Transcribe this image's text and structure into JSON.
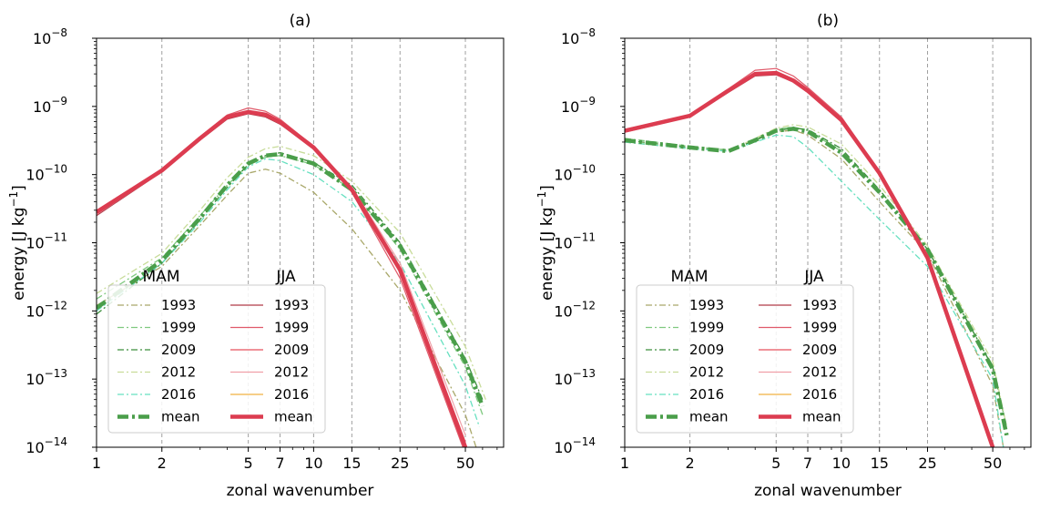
{
  "chart_data": [
    {
      "type": "line",
      "title": "(a)",
      "xlabel": "zonal wavenumber",
      "ylabel_main": "energy [J kg",
      "ylabel_sup": "−1",
      "ylabel_end": "]",
      "x_scale": "log",
      "y_scale": "log",
      "xlim": [
        1,
        75
      ],
      "ylim": [
        1e-14,
        1e-08
      ],
      "xticks": [
        1,
        2,
        5,
        7,
        10,
        15,
        25,
        50
      ],
      "xtick_labels": [
        "1",
        "2",
        "5",
        "7",
        "10",
        "15",
        "25",
        "50"
      ],
      "ytick_labels": [
        {
          "base": "10",
          "exp": "−8"
        },
        {
          "base": "10",
          "exp": "−9"
        },
        {
          "base": "10",
          "exp": "−10"
        },
        {
          "base": "10",
          "exp": "−11"
        },
        {
          "base": "10",
          "exp": "−12"
        },
        {
          "base": "10",
          "exp": "−13"
        },
        {
          "base": "10",
          "exp": "−14"
        }
      ],
      "grid": "vertical dashed at x ticks",
      "legend_position": "lower-left",
      "legend_groups": [
        "MAM",
        "JJA"
      ],
      "series": [
        {
          "name": "1993",
          "group": "MAM",
          "color": "#a9a86a",
          "style": "dashdot",
          "x": [
            1,
            2,
            3,
            4,
            5,
            6,
            7,
            10,
            15,
            25,
            50,
            56
          ],
          "y": [
            1.2e-12,
            4.5e-12,
            1.8e-11,
            5e-11,
            1.05e-10,
            1.2e-10,
            1.05e-10,
            5.5e-11,
            1.6e-11,
            2e-12,
            3e-14,
            1e-14
          ]
        },
        {
          "name": "1999",
          "group": "MAM",
          "color": "#7fc97f",
          "style": "dashdot",
          "x": [
            1,
            2,
            3,
            4,
            5,
            6,
            7,
            10,
            15,
            25,
            50,
            60
          ],
          "y": [
            1.5e-12,
            6e-12,
            2.5e-11,
            7e-11,
            1.4e-10,
            1.8e-10,
            1.9e-10,
            1.4e-10,
            6e-11,
            8e-12,
            1.5e-13,
            3e-14
          ]
        },
        {
          "name": "2009",
          "group": "MAM",
          "color": "#3c8f3c",
          "style": "dashdot",
          "x": [
            1,
            2,
            3,
            4,
            5,
            6,
            7,
            10,
            15,
            25,
            50,
            60
          ],
          "y": [
            9e-13,
            5e-12,
            2.2e-11,
            6.5e-11,
            1.4e-10,
            1.9e-10,
            2.1e-10,
            1.5e-10,
            7e-11,
            1e-11,
            2e-13,
            5e-14
          ]
        },
        {
          "name": "2012",
          "group": "MAM",
          "color": "#c8dc9a",
          "style": "dashdot",
          "x": [
            1,
            2,
            3,
            4,
            5,
            6,
            7,
            10,
            15,
            25,
            50,
            62
          ],
          "y": [
            1.8e-12,
            7e-12,
            3e-11,
            9e-11,
            1.8e-10,
            2.4e-10,
            2.6e-10,
            1.9e-10,
            8e-11,
            1.4e-11,
            3e-13,
            5e-14
          ]
        },
        {
          "name": "2016",
          "group": "MAM",
          "color": "#66e0c0",
          "style": "dashdot",
          "x": [
            1,
            2,
            3,
            4,
            5,
            6,
            7,
            10,
            15,
            25,
            50,
            58
          ],
          "y": [
            1e-12,
            5e-12,
            2e-11,
            6e-11,
            1.3e-10,
            1.7e-10,
            1.6e-10,
            1e-10,
            4e-11,
            5e-12,
            8e-14,
            2e-14
          ]
        },
        {
          "name": "mean",
          "group": "MAM",
          "color": "#4a9e4a",
          "style": "dashdot-thick",
          "x": [
            1,
            2,
            3,
            4,
            5,
            6,
            7,
            10,
            15,
            25,
            50,
            60
          ],
          "y": [
            1.1e-12,
            5.5e-12,
            2.3e-11,
            7e-11,
            1.45e-10,
            1.9e-10,
            2e-10,
            1.45e-10,
            6e-11,
            9e-12,
            1.8e-13,
            4e-14
          ]
        },
        {
          "name": "1993",
          "group": "JJA",
          "color": "#b03a48",
          "style": "solid",
          "x": [
            1,
            2,
            3,
            4,
            5,
            6,
            7,
            10,
            15,
            25,
            50
          ],
          "y": [
            2.5e-11,
            1.1e-10,
            3.2e-10,
            6.5e-10,
            7.8e-10,
            7e-10,
            5.5e-10,
            2.4e-10,
            6e-11,
            4e-12,
            1e-14
          ]
        },
        {
          "name": "1999",
          "group": "JJA",
          "color": "#e05a6a",
          "style": "solid",
          "x": [
            1,
            2,
            3,
            4,
            5,
            6,
            7,
            10,
            15,
            25,
            50
          ],
          "y": [
            2.8e-11,
            1.2e-10,
            3.6e-10,
            7.5e-10,
            9.5e-10,
            8.5e-10,
            6.5e-10,
            2.6e-10,
            5.5e-11,
            3e-12,
            8e-15
          ]
        },
        {
          "name": "2009",
          "group": "JJA",
          "color": "#e8505c",
          "style": "solid",
          "x": [
            1,
            2,
            3,
            4,
            5,
            6,
            7,
            10,
            15,
            25,
            50
          ],
          "y": [
            3e-11,
            1.2e-10,
            3.5e-10,
            7e-10,
            8.5e-10,
            7.8e-10,
            6e-10,
            2.6e-10,
            6e-11,
            4e-12,
            1.2e-14
          ]
        },
        {
          "name": "2012",
          "group": "JJA",
          "color": "#f0a0a8",
          "style": "solid",
          "x": [
            1,
            2,
            3,
            4,
            5,
            6,
            7,
            10,
            15,
            25,
            50
          ],
          "y": [
            2.6e-11,
            1.1e-10,
            3.3e-10,
            6.8e-10,
            8e-10,
            7.2e-10,
            5.6e-10,
            2.5e-10,
            6.5e-11,
            5e-12,
            1.5e-14
          ]
        },
        {
          "name": "2016",
          "group": "JJA",
          "color": "#f0b040",
          "style": "solid",
          "x": [
            1,
            2,
            3,
            4,
            5,
            6,
            7,
            10,
            15,
            25,
            50
          ],
          "y": [
            2.9e-11,
            1.2e-10,
            3.4e-10,
            7e-10,
            8.2e-10,
            7.5e-10,
            5.8e-10,
            2.5e-10,
            6e-11,
            4e-12,
            1e-14
          ]
        },
        {
          "name": "mean",
          "group": "JJA",
          "color": "#dc3c50",
          "style": "solid-thick",
          "x": [
            1,
            2,
            3,
            4,
            5,
            6,
            7,
            10,
            15,
            25,
            50
          ],
          "y": [
            2.8e-11,
            1.15e-10,
            3.4e-10,
            7e-10,
            8.3e-10,
            7.6e-10,
            5.9e-10,
            2.5e-10,
            6e-11,
            4e-12,
            1e-14
          ]
        }
      ]
    },
    {
      "type": "line",
      "title": "(b)",
      "xlabel": "zonal wavenumber",
      "ylabel_main": "energy [J kg",
      "ylabel_sup": "−1",
      "ylabel_end": "]",
      "x_scale": "log",
      "y_scale": "log",
      "xlim": [
        1,
        75
      ],
      "ylim": [
        1e-14,
        1e-08
      ],
      "xticks": [
        1,
        2,
        5,
        7,
        10,
        15,
        25,
        50
      ],
      "xtick_labels": [
        "1",
        "2",
        "5",
        "7",
        "10",
        "15",
        "25",
        "50"
      ],
      "ytick_labels": [
        {
          "base": "10",
          "exp": "−8"
        },
        {
          "base": "10",
          "exp": "−9"
        },
        {
          "base": "10",
          "exp": "−10"
        },
        {
          "base": "10",
          "exp": "−11"
        },
        {
          "base": "10",
          "exp": "−12"
        },
        {
          "base": "10",
          "exp": "−13"
        },
        {
          "base": "10",
          "exp": "−14"
        }
      ],
      "grid": "vertical dashed at x ticks",
      "legend_position": "lower-left",
      "legend_groups": [
        "MAM",
        "JJA"
      ],
      "series": [
        {
          "name": "1993",
          "group": "MAM",
          "color": "#a9a86a",
          "style": "dashdot",
          "x": [
            1,
            2,
            3,
            4,
            5,
            6,
            7,
            10,
            15,
            25,
            50,
            56
          ],
          "y": [
            3e-10,
            2.4e-10,
            2.2e-10,
            3.2e-10,
            4.2e-10,
            4.5e-10,
            3.8e-10,
            1.7e-10,
            4e-11,
            7e-12,
            8e-14,
            1e-14
          ]
        },
        {
          "name": "1999",
          "group": "MAM",
          "color": "#7fc97f",
          "style": "dashdot",
          "x": [
            1,
            2,
            3,
            4,
            5,
            6,
            7,
            10,
            15,
            25,
            50,
            58
          ],
          "y": [
            3.4e-10,
            2.6e-10,
            2.3e-10,
            3.3e-10,
            4.6e-10,
            5e-10,
            4.4e-10,
            2.2e-10,
            6e-11,
            8e-12,
            1.5e-13,
            2e-14
          ]
        },
        {
          "name": "2009",
          "group": "MAM",
          "color": "#3c8f3c",
          "style": "dashdot",
          "x": [
            1,
            2,
            3,
            4,
            5,
            6,
            7,
            10,
            15,
            25,
            50,
            58
          ],
          "y": [
            3.2e-10,
            2.5e-10,
            2.2e-10,
            3.2e-10,
            4.4e-10,
            4.8e-10,
            4.6e-10,
            2.4e-10,
            6e-11,
            8e-12,
            1.5e-13,
            2e-14
          ]
        },
        {
          "name": "2012",
          "group": "MAM",
          "color": "#c8dc9a",
          "style": "dashdot",
          "x": [
            1,
            2,
            3,
            4,
            5,
            6,
            7,
            10,
            15,
            25,
            50,
            58
          ],
          "y": [
            3.1e-10,
            2.4e-10,
            2.2e-10,
            3.4e-10,
            4.8e-10,
            5.4e-10,
            5e-10,
            2.8e-10,
            7e-11,
            9e-12,
            1.8e-13,
            2e-14
          ]
        },
        {
          "name": "2016",
          "group": "MAM",
          "color": "#66e0c0",
          "style": "dashdot",
          "x": [
            1,
            2,
            3,
            4,
            5,
            6,
            7,
            10,
            15,
            25,
            50,
            56
          ],
          "y": [
            3e-10,
            2.4e-10,
            2.2e-10,
            3e-10,
            3.8e-10,
            3.6e-10,
            2.5e-10,
            8e-11,
            2.2e-11,
            4.5e-12,
            1e-13,
            1e-14
          ]
        },
        {
          "name": "mean",
          "group": "MAM",
          "color": "#4a9e4a",
          "style": "dashdot-thick",
          "x": [
            1,
            2,
            3,
            4,
            5,
            6,
            7,
            10,
            15,
            25,
            50,
            58
          ],
          "y": [
            3.2e-10,
            2.5e-10,
            2.2e-10,
            3.2e-10,
            4.4e-10,
            4.7e-10,
            4.3e-10,
            2.1e-10,
            5.5e-11,
            8e-12,
            1.4e-13,
            1.5e-14
          ]
        },
        {
          "name": "1993",
          "group": "JJA",
          "color": "#b03a48",
          "style": "solid",
          "x": [
            1,
            2,
            3,
            4,
            5,
            6,
            7,
            10,
            15,
            25,
            50
          ],
          "y": [
            4.2e-10,
            7e-10,
            1.6e-09,
            2.8e-09,
            2.9e-09,
            2.3e-09,
            1.6e-09,
            6e-10,
            1e-10,
            6e-12,
            1e-14
          ]
        },
        {
          "name": "1999",
          "group": "JJA",
          "color": "#e05a6a",
          "style": "solid",
          "x": [
            1,
            2,
            3,
            4,
            5,
            6,
            7,
            10,
            15,
            25,
            50
          ],
          "y": [
            4.6e-10,
            7.6e-10,
            1.8e-09,
            3.4e-09,
            3.6e-09,
            2.8e-09,
            1.9e-09,
            7e-10,
            1.1e-10,
            6e-12,
            1e-14
          ]
        },
        {
          "name": "2009",
          "group": "JJA",
          "color": "#e8505c",
          "style": "solid",
          "x": [
            1,
            2,
            3,
            4,
            5,
            6,
            7,
            10,
            15,
            25,
            50
          ],
          "y": [
            4.4e-10,
            7.4e-10,
            1.7e-09,
            3.1e-09,
            3.2e-09,
            2.5e-09,
            1.7e-09,
            6.5e-10,
            1.1e-10,
            6e-12,
            1e-14
          ]
        },
        {
          "name": "2012",
          "group": "JJA",
          "color": "#f0a0a8",
          "style": "solid",
          "x": [
            1,
            2,
            3,
            4,
            5,
            6,
            7,
            10,
            15,
            25,
            50
          ],
          "y": [
            4.3e-10,
            7.2e-10,
            1.65e-09,
            3e-09,
            3.1e-09,
            2.4e-09,
            1.6e-09,
            6e-10,
            1e-10,
            6e-12,
            1e-14
          ]
        },
        {
          "name": "2016",
          "group": "JJA",
          "color": "#f0b040",
          "style": "solid",
          "x": [
            1,
            2,
            3,
            4,
            5,
            6,
            7,
            10,
            15,
            25,
            50
          ],
          "y": [
            4.4e-10,
            7.3e-10,
            1.7e-09,
            3.05e-09,
            3.1e-09,
            2.45e-09,
            1.65e-09,
            6.2e-10,
            1.05e-10,
            6e-12,
            1e-14
          ]
        },
        {
          "name": "mean",
          "group": "JJA",
          "color": "#dc3c50",
          "style": "solid-thick",
          "x": [
            1,
            2,
            3,
            4,
            5,
            6,
            7,
            10,
            15,
            25,
            50
          ],
          "y": [
            4.4e-10,
            7.3e-10,
            1.7e-09,
            3e-09,
            3.1e-09,
            2.4e-09,
            1.7e-09,
            6.3e-10,
            1.05e-10,
            6e-12,
            1e-14
          ]
        }
      ]
    }
  ]
}
